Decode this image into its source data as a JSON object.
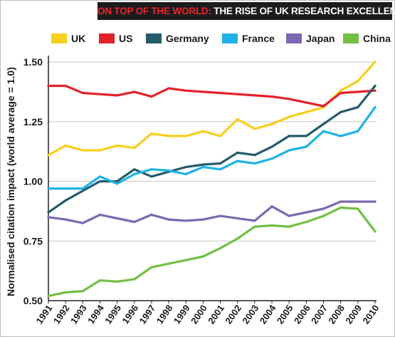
{
  "banner": {
    "lead": "ON TOP OF THE WORLD:",
    "rest": " THE RISE OF UK RESEARCH EXCELLENCE"
  },
  "chart_data": {
    "type": "line",
    "title": "ON TOP OF THE WORLD: THE RISE OF UK RESEARCH EXCELLENCE",
    "xlabel": "",
    "ylabel": "Normalised citation impact (world average = 1.0)",
    "x": [
      "1991",
      "1992",
      "1993",
      "1994",
      "1995",
      "1996",
      "1997",
      "1998",
      "1999",
      "2000",
      "2001",
      "2002",
      "2003",
      "2004",
      "2005",
      "2006",
      "2007",
      "2008",
      "2009",
      "2010"
    ],
    "ylim": [
      0.5,
      1.5
    ],
    "yticks": [
      "0.50",
      "0.75",
      "1.00",
      "1.25",
      "1.50"
    ],
    "grid": true,
    "legend_position": "top",
    "series": [
      {
        "name": "UK",
        "color": "#f7cf1d",
        "values": [
          1.11,
          1.15,
          1.13,
          1.13,
          1.15,
          1.14,
          1.2,
          1.19,
          1.19,
          1.21,
          1.19,
          1.26,
          1.22,
          1.24,
          1.27,
          1.29,
          1.31,
          1.38,
          1.42,
          1.5
        ]
      },
      {
        "name": "US",
        "color": "#e3222b",
        "values": [
          1.4,
          1.4,
          1.37,
          1.365,
          1.36,
          1.375,
          1.355,
          1.39,
          1.38,
          1.375,
          1.37,
          1.365,
          1.36,
          1.355,
          1.345,
          1.33,
          1.315,
          1.37,
          1.375,
          1.38
        ]
      },
      {
        "name": "Germany",
        "color": "#255c6c",
        "values": [
          0.87,
          0.92,
          0.96,
          1.0,
          1.0,
          1.05,
          1.02,
          1.04,
          1.06,
          1.07,
          1.075,
          1.12,
          1.11,
          1.145,
          1.19,
          1.19,
          1.24,
          1.29,
          1.31,
          1.4
        ]
      },
      {
        "name": "France",
        "color": "#1fb2e6",
        "values": [
          0.97,
          0.97,
          0.97,
          1.02,
          0.99,
          1.03,
          1.05,
          1.045,
          1.03,
          1.06,
          1.05,
          1.085,
          1.075,
          1.095,
          1.13,
          1.145,
          1.21,
          1.19,
          1.21,
          1.31
        ]
      },
      {
        "name": "Japan",
        "color": "#7b68b0",
        "values": [
          0.85,
          0.84,
          0.825,
          0.86,
          0.845,
          0.83,
          0.86,
          0.84,
          0.835,
          0.84,
          0.855,
          0.845,
          0.835,
          0.895,
          0.855,
          0.87,
          0.885,
          0.915,
          0.915,
          0.915
        ]
      },
      {
        "name": "China",
        "color": "#72bf44",
        "values": [
          0.52,
          0.535,
          0.54,
          0.585,
          0.58,
          0.59,
          0.64,
          0.655,
          0.67,
          0.685,
          0.72,
          0.76,
          0.81,
          0.815,
          0.81,
          0.83,
          0.855,
          0.89,
          0.885,
          0.79
        ]
      }
    ]
  }
}
